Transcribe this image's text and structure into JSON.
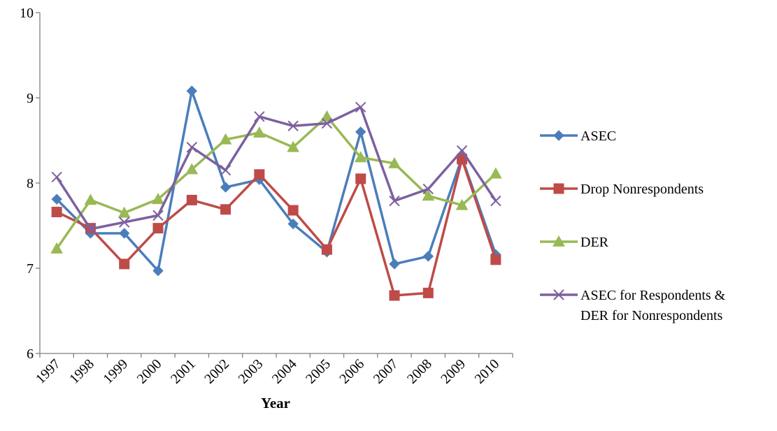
{
  "chart_data": {
    "type": "line",
    "title": "",
    "xlabel": "Year",
    "ylabel": "",
    "categories": [
      "1997",
      "1998",
      "1999",
      "2000",
      "2001",
      "2002",
      "2003",
      "2004",
      "2005",
      "2006",
      "2007",
      "2008",
      "2009",
      "2010"
    ],
    "ylim": [
      6,
      10
    ],
    "yticks": [
      "6",
      "7",
      "8",
      "9",
      "10"
    ],
    "grid": false,
    "legend_position": "right",
    "series": [
      {
        "name": "ASEC",
        "marker": "diamond",
        "color": "#4a7ebb",
        "values": [
          7.81,
          7.41,
          7.41,
          6.97,
          9.08,
          7.95,
          8.04,
          7.52,
          7.19,
          8.6,
          7.05,
          7.14,
          8.3,
          7.16
        ]
      },
      {
        "name": "Drop Nonrespondents",
        "marker": "square",
        "color": "#be4b48",
        "values": [
          7.66,
          7.47,
          7.05,
          7.47,
          7.8,
          7.69,
          8.1,
          7.68,
          7.22,
          8.05,
          6.68,
          6.71,
          8.28,
          7.1
        ]
      },
      {
        "name": "DER",
        "marker": "triangle",
        "color": "#98b954",
        "values": [
          7.23,
          7.8,
          7.65,
          7.81,
          8.16,
          8.51,
          8.59,
          8.42,
          8.78,
          8.3,
          8.23,
          7.85,
          7.74,
          8.11
        ]
      },
      {
        "name": "ASEC for Respondents & DER for Nonrespondents",
        "marker": "x",
        "color": "#7d60a0",
        "values": [
          8.07,
          7.46,
          7.54,
          7.62,
          8.42,
          8.15,
          8.78,
          8.67,
          8.7,
          8.89,
          7.79,
          7.93,
          8.38,
          7.79
        ]
      }
    ]
  },
  "legend_lines": [
    [
      "ASEC"
    ],
    [
      "Drop Nonrespondents"
    ],
    [
      "DER"
    ],
    [
      "ASEC for Respondents &",
      "DER for Nonrespondents"
    ]
  ]
}
